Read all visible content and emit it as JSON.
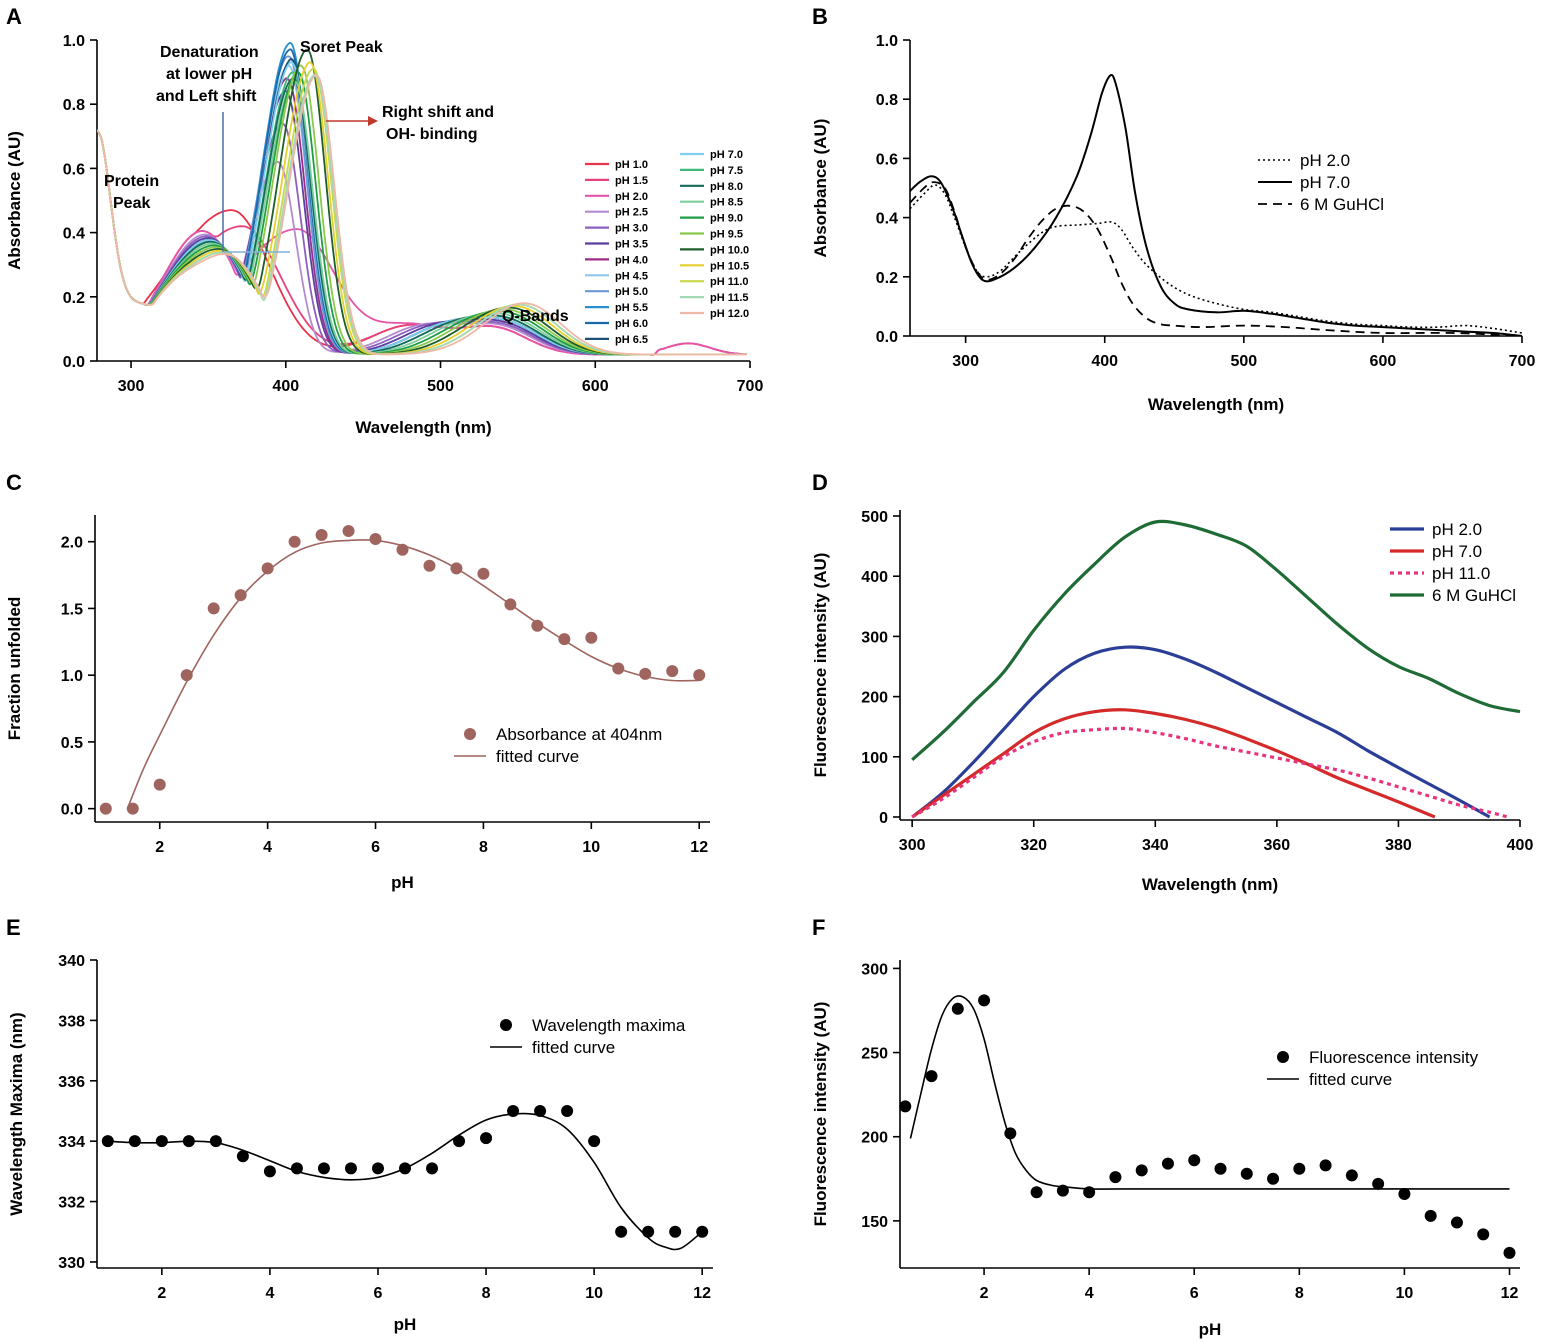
{
  "figure": {
    "panel_letters": [
      "A",
      "B",
      "C",
      "D",
      "E",
      "F"
    ]
  },
  "chart_data": [
    {
      "id": "A",
      "type": "line",
      "xlabel": "Wavelength (nm)",
      "ylabel": "Absorbance (AU)",
      "xlim": [
        278,
        700
      ],
      "ylim": [
        0,
        1.0
      ],
      "xticks": [
        300,
        400,
        500,
        600,
        700
      ],
      "yticks": [
        0.0,
        0.2,
        0.4,
        0.6,
        0.8,
        1.0
      ],
      "ytick_labels": [
        "0.0",
        "0.2",
        "0.4",
        "0.6",
        "0.8",
        "1.0"
      ],
      "legend_position": "right",
      "annotations": [
        "Protein",
        "Peak",
        "Denaturation",
        "at lower pH",
        "and Left shift",
        "Soret Peak",
        "Right shift and",
        "OH- binding",
        "Q-Bands"
      ],
      "series": [
        {
          "name": "pH 1.0",
          "color": "#e8334a",
          "soret_nm": 365,
          "soret_abs": 0.45,
          "shift": -5
        },
        {
          "name": "pH 1.5",
          "color": "#e8417d",
          "soret_nm": 372,
          "soret_abs": 0.4,
          "shift": -5
        },
        {
          "name": "pH 2.0",
          "color": "#e455a8",
          "soret_nm": 407,
          "soret_abs": 0.39,
          "shift": -5
        },
        {
          "name": "pH 2.5",
          "color": "#b58ad0",
          "soret_nm": 395,
          "soret_abs": 0.6,
          "shift": -3
        },
        {
          "name": "pH 3.0",
          "color": "#8d5fc0",
          "soret_nm": 398,
          "soret_abs": 0.72,
          "shift": -2
        },
        {
          "name": "pH 3.5",
          "color": "#5b3f9e",
          "soret_nm": 400,
          "soret_abs": 0.82,
          "shift": -1
        },
        {
          "name": "pH 4.0",
          "color": "#9c2b8c",
          "soret_nm": 401,
          "soret_abs": 0.86,
          "shift": 0
        },
        {
          "name": "pH 4.5",
          "color": "#8ec9ea",
          "soret_nm": 402,
          "soret_abs": 0.9,
          "shift": 0
        },
        {
          "name": "pH 5.0",
          "color": "#6c97d4",
          "soret_nm": 402,
          "soret_abs": 0.93,
          "shift": 0
        },
        {
          "name": "pH 5.5",
          "color": "#2a8fd2",
          "soret_nm": 403,
          "soret_abs": 0.97,
          "shift": 0
        },
        {
          "name": "pH 6.0",
          "color": "#1a6aa8",
          "soret_nm": 403,
          "soret_abs": 0.95,
          "shift": 0
        },
        {
          "name": "pH 6.5",
          "color": "#1e4f74",
          "soret_nm": 404,
          "soret_abs": 0.92,
          "shift": 0
        },
        {
          "name": "pH 7.0",
          "color": "#7fd0f0",
          "soret_nm": 404,
          "soret_abs": 0.91,
          "shift": 0
        },
        {
          "name": "pH 7.5",
          "color": "#3db879",
          "soret_nm": 405,
          "soret_abs": 0.88,
          "shift": 1
        },
        {
          "name": "pH 8.0",
          "color": "#176b5a",
          "soret_nm": 405,
          "soret_abs": 0.86,
          "shift": 1
        },
        {
          "name": "pH 8.5",
          "color": "#7ccf9c",
          "soret_nm": 406,
          "soret_abs": 0.85,
          "shift": 2
        },
        {
          "name": "pH 9.0",
          "color": "#1f9e45",
          "soret_nm": 408,
          "soret_abs": 0.88,
          "shift": 3
        },
        {
          "name": "pH 9.5",
          "color": "#8cc84b",
          "soret_nm": 410,
          "soret_abs": 0.9,
          "shift": 4
        },
        {
          "name": "pH 10.0",
          "color": "#1c5e2c",
          "soret_nm": 414,
          "soret_abs": 0.95,
          "shift": 5
        },
        {
          "name": "pH 10.5",
          "color": "#e6cf2e",
          "soret_nm": 416,
          "soret_abs": 0.91,
          "shift": 6
        },
        {
          "name": "pH 11.0",
          "color": "#c9d84a",
          "soret_nm": 418,
          "soret_abs": 0.89,
          "shift": 7
        },
        {
          "name": "pH 11.5",
          "color": "#a3d9b5",
          "soret_nm": 419,
          "soret_abs": 0.87,
          "shift": 7
        },
        {
          "name": "pH 12.0",
          "color": "#f0b8a6",
          "soret_nm": 420,
          "soret_abs": 0.87,
          "shift": 8
        }
      ]
    },
    {
      "id": "B",
      "type": "line",
      "xlabel": "Wavelength (nm)",
      "ylabel": "Absorbance (AU)",
      "xlim": [
        260,
        700
      ],
      "ylim": [
        0,
        1.0
      ],
      "xticks": [
        300,
        400,
        500,
        600,
        700
      ],
      "yticks": [
        0.0,
        0.2,
        0.4,
        0.6,
        0.8,
        1.0
      ],
      "ytick_labels": [
        "0.0",
        "0.2",
        "0.4",
        "0.6",
        "0.8",
        "1.0"
      ],
      "legend_position": "right",
      "series": [
        {
          "name": "pH 2.0",
          "color": "#000000",
          "dash": "2,3",
          "width": 1.6,
          "x": [
            260,
            270,
            278,
            285,
            292,
            300,
            308,
            315,
            325,
            340,
            355,
            365,
            380,
            395,
            405,
            412,
            420,
            430,
            445,
            460,
            480,
            500,
            520,
            540,
            560,
            580,
            600,
            620,
            640,
            660,
            680,
            700
          ],
          "y": [
            0.43,
            0.48,
            0.51,
            0.48,
            0.4,
            0.3,
            0.22,
            0.2,
            0.22,
            0.29,
            0.35,
            0.37,
            0.375,
            0.38,
            0.385,
            0.36,
            0.3,
            0.24,
            0.18,
            0.14,
            0.11,
            0.09,
            0.08,
            0.065,
            0.05,
            0.04,
            0.035,
            0.03,
            0.03,
            0.035,
            0.025,
            0.01
          ]
        },
        {
          "name": "pH 7.0",
          "color": "#000000",
          "dash": "",
          "width": 2,
          "x": [
            260,
            267,
            275,
            282,
            290,
            298,
            305,
            312,
            320,
            335,
            350,
            365,
            380,
            390,
            398,
            404,
            408,
            415,
            422,
            430,
            440,
            450,
            460,
            480,
            500,
            520,
            540,
            560,
            580,
            600,
            620,
            640,
            660,
            680,
            700
          ],
          "y": [
            0.49,
            0.52,
            0.54,
            0.52,
            0.44,
            0.33,
            0.24,
            0.19,
            0.19,
            0.23,
            0.3,
            0.4,
            0.54,
            0.68,
            0.82,
            0.88,
            0.85,
            0.7,
            0.48,
            0.3,
            0.17,
            0.11,
            0.09,
            0.08,
            0.085,
            0.075,
            0.06,
            0.045,
            0.035,
            0.03,
            0.025,
            0.02,
            0.015,
            0.01,
            0.0
          ]
        },
        {
          "name": "6 M GuHCl",
          "color": "#000000",
          "dash": "9,6",
          "width": 1.8,
          "x": [
            260,
            270,
            277,
            285,
            292,
            300,
            308,
            315,
            325,
            335,
            345,
            355,
            365,
            375,
            385,
            395,
            405,
            412,
            420,
            430,
            440,
            450,
            470,
            500,
            530,
            560,
            600,
            650,
            700
          ],
          "y": [
            0.45,
            0.5,
            0.52,
            0.5,
            0.42,
            0.3,
            0.22,
            0.19,
            0.21,
            0.26,
            0.33,
            0.39,
            0.43,
            0.44,
            0.42,
            0.36,
            0.26,
            0.18,
            0.11,
            0.06,
            0.04,
            0.035,
            0.03,
            0.035,
            0.03,
            0.02,
            0.01,
            0.01,
            0.0
          ]
        }
      ]
    },
    {
      "id": "C",
      "type": "scatter",
      "xlabel": "pH",
      "ylabel": "Fraction unfolded",
      "xlim": [
        0.8,
        12.2
      ],
      "ylim": [
        -0.1,
        2.2
      ],
      "xticks": [
        2,
        4,
        6,
        8,
        10,
        12
      ],
      "yticks": [
        0.0,
        0.5,
        1.0,
        1.5,
        2.0
      ],
      "ytick_labels": [
        "0.0",
        "0.5",
        "1.0",
        "1.5",
        "2.0"
      ],
      "legend_position": "center",
      "legend": [
        "Absorbance at 404nm",
        "fitted curve"
      ],
      "color": "#a0645f",
      "points": {
        "x": [
          1.0,
          1.5,
          2.0,
          2.5,
          3.0,
          3.5,
          4.0,
          4.5,
          5.0,
          5.5,
          6.0,
          6.5,
          7.0,
          7.5,
          8.0,
          8.5,
          9.0,
          9.5,
          10.0,
          10.5,
          11.0,
          11.5,
          12.0
        ],
        "y": [
          0.0,
          0.0,
          0.18,
          1.0,
          1.5,
          1.6,
          1.8,
          2.0,
          2.05,
          2.08,
          2.02,
          1.94,
          1.82,
          1.8,
          1.76,
          1.53,
          1.37,
          1.27,
          1.28,
          1.05,
          1.01,
          1.03,
          1.0
        ]
      },
      "fit": {
        "x": [
          1.4,
          1.7,
          2.0,
          2.5,
          3.0,
          3.5,
          4.0,
          4.5,
          5.0,
          5.5,
          6.0,
          6.5,
          7.0,
          7.5,
          8.0,
          8.5,
          9.0,
          9.5,
          10.0,
          10.5,
          11.0,
          11.5,
          12.0
        ],
        "y": [
          0.0,
          0.3,
          0.55,
          0.95,
          1.3,
          1.58,
          1.78,
          1.92,
          1.99,
          2.01,
          2.01,
          1.97,
          1.9,
          1.8,
          1.67,
          1.53,
          1.39,
          1.26,
          1.14,
          1.05,
          0.99,
          0.96,
          0.96
        ]
      }
    },
    {
      "id": "D",
      "type": "line",
      "xlabel": "Wavelength (nm)",
      "ylabel": "Fluorescence intensity  (AU)",
      "xlim": [
        298,
        400
      ],
      "ylim": [
        -5,
        510
      ],
      "xticks": [
        300,
        320,
        340,
        360,
        380,
        400
      ],
      "yticks": [
        0,
        100,
        200,
        300,
        400,
        500
      ],
      "ytick_labels": [
        "0",
        "100",
        "200",
        "300",
        "400",
        "500"
      ],
      "legend_position": "top-right",
      "series": [
        {
          "name": "pH 2.0",
          "color": "#2b3e97",
          "dash": "",
          "width": 3.2,
          "x": [
            300,
            305,
            310,
            315,
            320,
            325,
            330,
            335,
            340,
            345,
            350,
            355,
            360,
            365,
            370,
            375,
            380,
            385,
            390,
            395
          ],
          "y": [
            0,
            40,
            90,
            145,
            200,
            245,
            272,
            282,
            278,
            262,
            240,
            215,
            190,
            165,
            140,
            110,
            82,
            55,
            28,
            0
          ]
        },
        {
          "name": "pH 7.0",
          "color": "#d42a2a",
          "dash": "",
          "width": 3.2,
          "x": [
            300,
            305,
            310,
            315,
            320,
            325,
            330,
            335,
            340,
            345,
            350,
            355,
            360,
            365,
            370,
            375,
            380,
            386
          ],
          "y": [
            0,
            35,
            70,
            105,
            140,
            163,
            175,
            178,
            172,
            162,
            148,
            130,
            110,
            88,
            65,
            45,
            25,
            0
          ]
        },
        {
          "name": "pH 11.0",
          "color": "#e8347e",
          "dash": "4,4",
          "width": 3.2,
          "x": [
            300,
            305,
            310,
            315,
            320,
            325,
            330,
            335,
            340,
            345,
            350,
            355,
            360,
            365,
            370,
            375,
            380,
            385,
            390,
            395,
            398
          ],
          "y": [
            0,
            30,
            65,
            100,
            125,
            140,
            145,
            147,
            140,
            130,
            118,
            108,
            98,
            88,
            78,
            65,
            50,
            35,
            20,
            8,
            0
          ]
        },
        {
          "name": "6 M GuHCl",
          "color": "#1f6b35",
          "dash": "",
          "width": 3.2,
          "x": [
            300,
            305,
            310,
            315,
            320,
            325,
            330,
            335,
            340,
            345,
            350,
            355,
            360,
            365,
            370,
            375,
            380,
            385,
            390,
            395,
            400
          ],
          "y": [
            95,
            140,
            190,
            240,
            310,
            370,
            420,
            465,
            490,
            485,
            470,
            450,
            410,
            365,
            320,
            280,
            250,
            230,
            205,
            185,
            175
          ]
        }
      ]
    },
    {
      "id": "E",
      "type": "scatter",
      "xlabel": "pH",
      "ylabel": "Wavelength Maxima (nm)",
      "xlim": [
        0.8,
        12.2
      ],
      "ylim": [
        329.8,
        340
      ],
      "xticks": [
        2,
        4,
        6,
        8,
        10,
        12
      ],
      "yticks": [
        330,
        332,
        334,
        336,
        338,
        340
      ],
      "ytick_labels": [
        "330",
        "332",
        "334",
        "336",
        "338",
        "340"
      ],
      "legend_position": "top-right",
      "legend": [
        "Wavelength maxima",
        "fitted curve"
      ],
      "color": "#000000",
      "points": {
        "x": [
          1.0,
          1.5,
          2.0,
          2.5,
          3.0,
          3.5,
          4.0,
          4.5,
          5.0,
          5.5,
          6.0,
          6.5,
          7.0,
          7.5,
          8.0,
          8.5,
          9.0,
          9.5,
          10.0,
          10.5,
          11.0,
          11.5,
          12.0
        ],
        "y": [
          334,
          334,
          334,
          334,
          334,
          333.5,
          333,
          333.1,
          333.1,
          333.1,
          333.1,
          333.1,
          333.1,
          334,
          334.1,
          335,
          335,
          335,
          334,
          331,
          331,
          331,
          331
        ]
      },
      "fit": {
        "x": [
          1.0,
          1.5,
          2.0,
          2.5,
          3.0,
          3.5,
          4.0,
          4.5,
          5.0,
          5.5,
          6.0,
          6.5,
          7.0,
          7.5,
          8.0,
          8.5,
          9.0,
          9.5,
          10.0,
          10.5,
          11.0,
          11.3,
          11.6,
          12.0
        ],
        "y": [
          334,
          333.95,
          333.95,
          334,
          333.95,
          333.7,
          333.35,
          333,
          332.8,
          332.72,
          332.8,
          333.1,
          333.6,
          334.2,
          334.7,
          334.9,
          334.85,
          334.4,
          333.3,
          331.8,
          330.8,
          330.5,
          330.45,
          331
        ]
      }
    },
    {
      "id": "F",
      "type": "scatter",
      "xlabel": "pH",
      "ylabel": "Fluorescence intensity (AU)",
      "xlim": [
        0.4,
        12.2
      ],
      "ylim": [
        122,
        305
      ],
      "xticks": [
        2,
        4,
        6,
        8,
        10,
        12
      ],
      "yticks": [
        150,
        200,
        250,
        300
      ],
      "ytick_labels": [
        "150",
        "200",
        "250",
        "300"
      ],
      "legend_position": "right",
      "legend": [
        "Fluorescence intensity",
        "fitted curve"
      ],
      "color": "#000000",
      "points": {
        "x": [
          0.5,
          1.0,
          1.5,
          2.0,
          2.5,
          3.0,
          3.5,
          4.0,
          4.5,
          5.0,
          5.5,
          6.0,
          6.5,
          7.0,
          7.5,
          8.0,
          8.5,
          9.0,
          9.5,
          10.0,
          10.5,
          11.0,
          11.5,
          12.0
        ],
        "y": [
          218,
          236,
          276,
          281,
          202,
          167,
          168,
          167,
          176,
          180,
          184,
          186,
          181,
          178,
          175,
          181,
          183,
          177,
          172,
          166,
          153,
          149,
          142,
          131
        ]
      },
      "fit": {
        "x": [
          0.6,
          0.8,
          1.0,
          1.2,
          1.4,
          1.6,
          1.8,
          2.0,
          2.2,
          2.4,
          2.6,
          2.8,
          3.0,
          3.3,
          3.6,
          4.0,
          5.0,
          6.0,
          8.0,
          10.0,
          12.0
        ],
        "y": [
          199,
          226,
          252,
          272,
          282,
          283,
          276,
          258,
          232,
          208,
          190,
          180,
          174,
          171,
          170,
          169,
          169,
          169,
          169,
          169,
          169
        ]
      }
    }
  ]
}
